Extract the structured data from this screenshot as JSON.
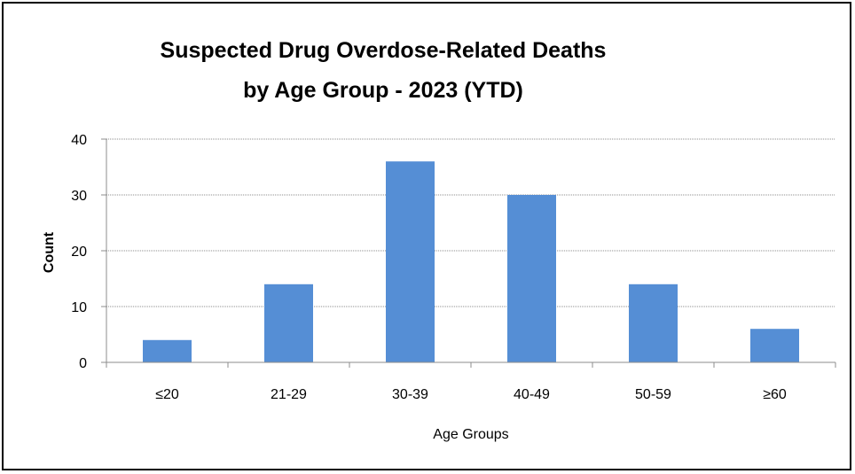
{
  "chart_data": {
    "type": "bar",
    "title_lines": [
      "Suspected Drug Overdose-Related Deaths",
      "by Age Group - 2023 (YTD)"
    ],
    "xlabel": "Age Groups",
    "ylabel": "Count",
    "categories": [
      "≤20",
      "21-29",
      "30-39",
      "40-49",
      "50-59",
      "≥60"
    ],
    "values": [
      4,
      14,
      36,
      30,
      14,
      6
    ],
    "ylim": [
      0,
      40
    ],
    "yticks": [
      "0",
      "10",
      "20",
      "30",
      "40"
    ],
    "grid": true,
    "legend": "none",
    "bar_color": "#558ED5",
    "grid_color": "#8C8C8C"
  }
}
